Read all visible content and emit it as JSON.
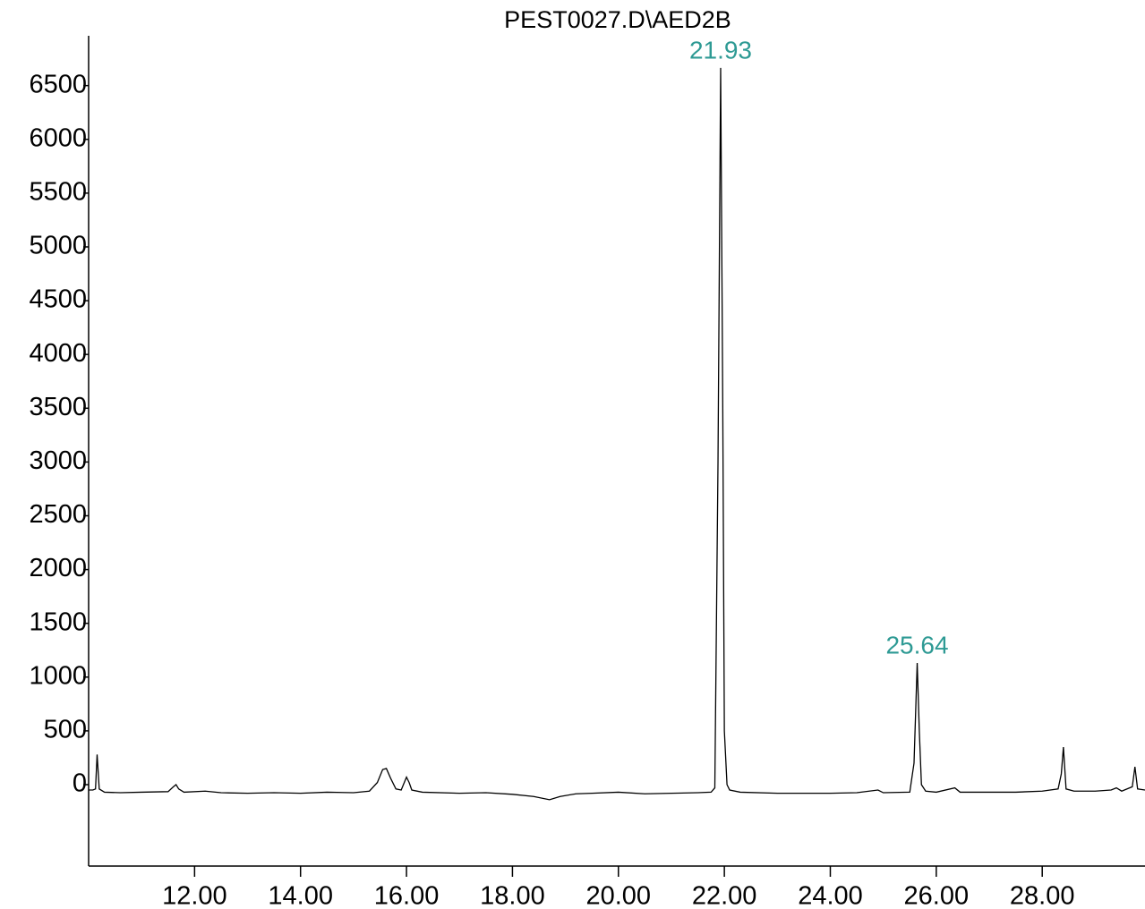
{
  "chart_data": {
    "type": "line",
    "title": "PEST0027.D\\AED2B",
    "color": "#000000",
    "annotation_color": "#2e9a94",
    "annotations": [
      "21.93",
      "25.64"
    ],
    "xlim": [
      10,
      29.94
    ],
    "ylim": [
      -757,
      6963
    ],
    "xticks": [
      {
        "value": 12,
        "label": "12.00"
      },
      {
        "value": 14,
        "label": "14.00"
      },
      {
        "value": 16,
        "label": "16.00"
      },
      {
        "value": 18,
        "label": "18.00"
      },
      {
        "value": 20,
        "label": "20.00"
      },
      {
        "value": 22,
        "label": "22.00"
      },
      {
        "value": 24,
        "label": "24.00"
      },
      {
        "value": 26,
        "label": "26.00"
      },
      {
        "value": 28,
        "label": "28.00"
      }
    ],
    "yticks": [
      0,
      500,
      1000,
      1500,
      2000,
      2500,
      3000,
      3500,
      4000,
      4500,
      5000,
      5500,
      6000,
      6500
    ],
    "x": [
      10.0,
      10.08,
      10.13,
      10.16,
      10.2,
      10.3,
      10.6,
      11.0,
      11.5,
      11.6,
      11.65,
      11.7,
      11.8,
      12.2,
      12.5,
      13.0,
      13.5,
      14.0,
      14.5,
      15.0,
      15.3,
      15.45,
      15.55,
      15.62,
      15.7,
      15.8,
      15.9,
      16.0,
      16.05,
      16.1,
      16.3,
      17.0,
      17.5,
      18.0,
      18.4,
      18.7,
      18.9,
      19.2,
      19.5,
      20.0,
      20.5,
      21.0,
      21.5,
      21.75,
      21.82,
      21.88,
      21.93,
      21.97,
      22.0,
      22.05,
      22.1,
      22.3,
      23.0,
      23.5,
      24.0,
      24.5,
      24.9,
      25.0,
      25.5,
      25.58,
      25.64,
      25.68,
      25.72,
      25.8,
      26.0,
      26.35,
      26.45,
      27.0,
      27.5,
      28.0,
      28.3,
      28.36,
      28.4,
      28.45,
      28.6,
      29.0,
      29.3,
      29.4,
      29.5,
      29.7,
      29.75,
      29.8,
      29.94
    ],
    "values": [
      -50,
      -50,
      -40,
      280,
      -40,
      -70,
      -75,
      -70,
      -65,
      -20,
      0,
      -40,
      -70,
      -60,
      -75,
      -80,
      -75,
      -80,
      -70,
      -75,
      -60,
      20,
      140,
      150,
      60,
      -40,
      -50,
      70,
      20,
      -50,
      -70,
      -80,
      -75,
      -90,
      -110,
      -140,
      -110,
      -85,
      -80,
      -70,
      -85,
      -80,
      -75,
      -70,
      -30,
      3000,
      6664,
      3500,
      500,
      0,
      -50,
      -70,
      -80,
      -80,
      -80,
      -75,
      -50,
      -75,
      -70,
      200,
      1131,
      500,
      0,
      -60,
      -70,
      -30,
      -70,
      -70,
      -70,
      -60,
      -40,
      100,
      349,
      -40,
      -60,
      -60,
      -50,
      -30,
      -60,
      -20,
      166,
      -40,
      -50
    ]
  }
}
